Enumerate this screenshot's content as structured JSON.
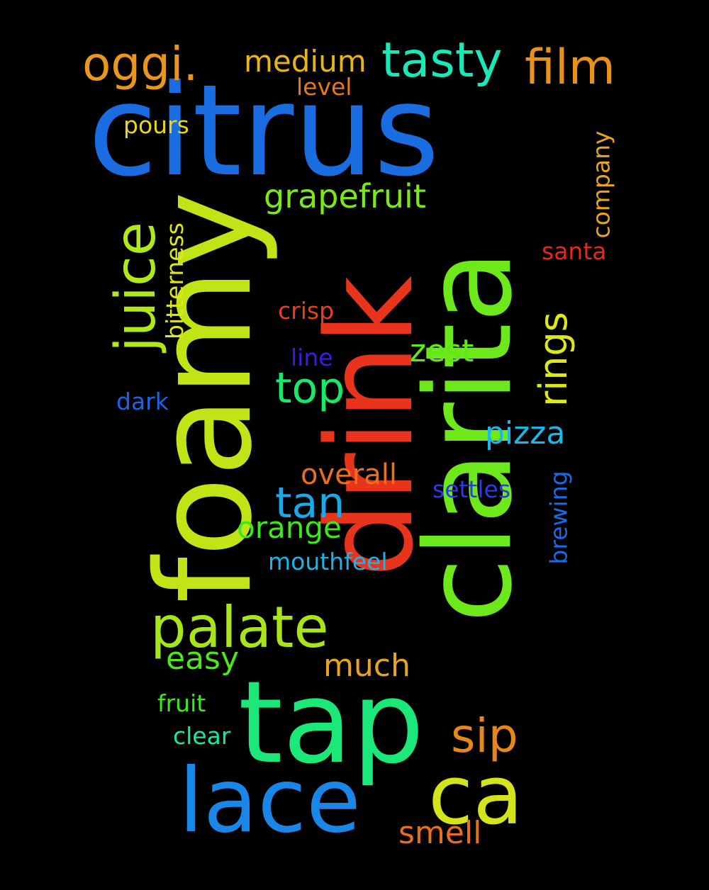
{
  "background": "#000000",
  "words": [
    {
      "text": "citrus",
      "color": "#1a6de0"
    },
    {
      "text": "foamy",
      "color": "#c0e416"
    },
    {
      "text": "drink",
      "color": "#e8341c"
    },
    {
      "text": "clarita",
      "color": "#6de81a"
    },
    {
      "text": "tap",
      "color": "#1ce87a"
    },
    {
      "text": "lace",
      "color": "#1a86e8"
    },
    {
      "text": "ca",
      "color": "#d4e41c"
    },
    {
      "text": "palate",
      "color": "#a8e41a"
    },
    {
      "text": "juice",
      "color": "#b0e81a"
    },
    {
      "text": "tasty",
      "color": "#1ae8b8"
    },
    {
      "text": "film",
      "color": "#e8921c"
    },
    {
      "text": "oggi.",
      "color": "#e8961c"
    },
    {
      "text": "medium",
      "color": "#e8b41c"
    },
    {
      "text": "grapefruit",
      "color": "#7ce81a"
    },
    {
      "text": "top",
      "color": "#1ae86a"
    },
    {
      "text": "tan",
      "color": "#1aa8e8"
    },
    {
      "text": "rings",
      "color": "#dce81a"
    },
    {
      "text": "pizza",
      "color": "#1ab8e8"
    },
    {
      "text": "sip",
      "color": "#e8861c"
    },
    {
      "text": "orange",
      "color": "#3ee81a"
    },
    {
      "text": "overall",
      "color": "#e8701c"
    },
    {
      "text": "much",
      "color": "#e8a41c"
    },
    {
      "text": "easy",
      "color": "#4ee81a"
    },
    {
      "text": "smell",
      "color": "#e8701c"
    },
    {
      "text": "zest",
      "color": "#5ee81a"
    },
    {
      "text": "level",
      "color": "#e8781c"
    },
    {
      "text": "pours",
      "color": "#e8d41c"
    },
    {
      "text": "company",
      "color": "#e8a41c"
    },
    {
      "text": "santa",
      "color": "#e8281c"
    },
    {
      "text": "bitterness",
      "color": "#dce81a"
    },
    {
      "text": "crisp",
      "color": "#e8401c"
    },
    {
      "text": "line",
      "color": "#3a1ae8"
    },
    {
      "text": "dark",
      "color": "#1a64e8"
    },
    {
      "text": "settles",
      "color": "#2a3ae8"
    },
    {
      "text": "brewing",
      "color": "#1a6ae8"
    },
    {
      "text": "mouthfeel",
      "color": "#1ab4e8"
    },
    {
      "text": "fruit",
      "color": "#3ee81a"
    },
    {
      "text": "clear",
      "color": "#1ae8a0"
    }
  ]
}
